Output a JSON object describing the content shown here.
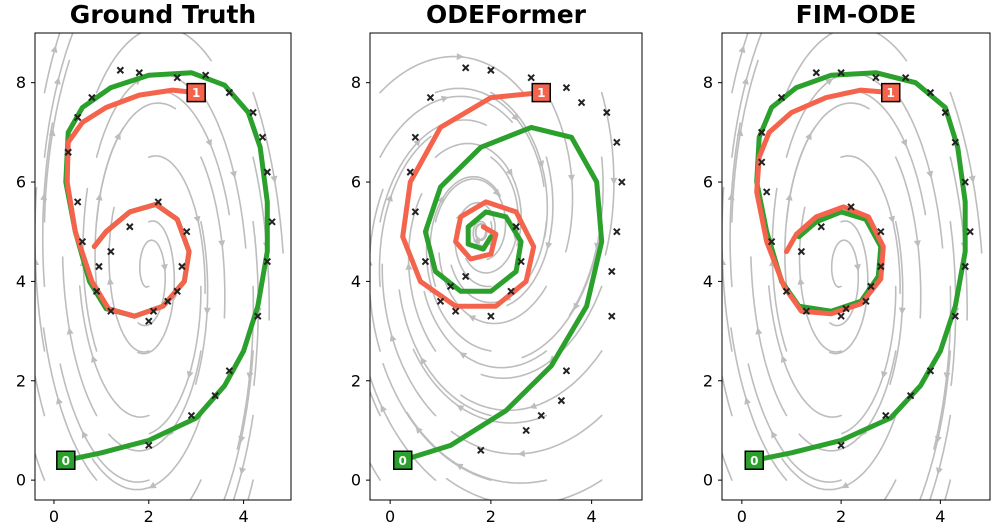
{
  "chart_data": [
    {
      "type": "phase_portrait",
      "title": "Ground Truth",
      "xlim": [
        -0.4,
        5.0
      ],
      "ylim": [
        -0.4,
        9.0
      ],
      "xticks": [
        0,
        2,
        4
      ],
      "yticks": [
        0,
        2,
        4,
        6,
        8
      ],
      "vector_field": {
        "center": [
          2.0,
          4.2
        ],
        "a": 0.7,
        "b": 1.7,
        "k": 0.12
      },
      "trajectories": [
        {
          "name": "ground-truth-green",
          "color": "#2ca02c",
          "points": [
            [
              0.25,
              0.4
            ],
            [
              1.0,
              0.55
            ],
            [
              2.0,
              0.8
            ],
            [
              3.0,
              1.25
            ],
            [
              3.6,
              1.9
            ],
            [
              4.0,
              2.6
            ],
            [
              4.3,
              3.5
            ],
            [
              4.5,
              4.6
            ],
            [
              4.5,
              5.6
            ],
            [
              4.35,
              6.7
            ],
            [
              4.1,
              7.4
            ],
            [
              3.6,
              7.95
            ],
            [
              2.9,
              8.2
            ],
            [
              2.0,
              8.15
            ],
            [
              1.2,
              7.9
            ],
            [
              0.6,
              7.5
            ],
            [
              0.3,
              7.0
            ],
            [
              0.25,
              6.0
            ],
            [
              0.45,
              5.0
            ],
            [
              0.75,
              4.0
            ],
            [
              1.1,
              3.45
            ],
            [
              1.7,
              3.3
            ],
            [
              2.3,
              3.5
            ],
            [
              2.75,
              4.0
            ],
            [
              2.85,
              4.6
            ],
            [
              2.6,
              5.25
            ],
            [
              2.15,
              5.55
            ],
            [
              1.6,
              5.4
            ],
            [
              1.1,
              5.0
            ],
            [
              0.85,
              4.7
            ]
          ]
        },
        {
          "name": "ground-truth-red",
          "color": "#f4644c",
          "points": [
            [
              3.0,
              7.8
            ],
            [
              2.5,
              7.85
            ],
            [
              1.8,
              7.75
            ],
            [
              1.1,
              7.5
            ],
            [
              0.6,
              7.2
            ],
            [
              0.3,
              6.8
            ],
            [
              0.28,
              6.0
            ],
            [
              0.45,
              5.0
            ],
            [
              0.8,
              4.0
            ],
            [
              1.15,
              3.45
            ],
            [
              1.7,
              3.3
            ],
            [
              2.3,
              3.5
            ],
            [
              2.75,
              4.0
            ],
            [
              2.85,
              4.6
            ],
            [
              2.6,
              5.25
            ],
            [
              2.15,
              5.55
            ],
            [
              1.6,
              5.4
            ],
            [
              1.1,
              5.0
            ],
            [
              0.85,
              4.7
            ]
          ]
        }
      ],
      "scatter": [
        [
          1.4,
          8.25
        ],
        [
          1.8,
          8.2
        ],
        [
          2.6,
          8.1
        ],
        [
          3.2,
          8.15
        ],
        [
          3.7,
          7.8
        ],
        [
          4.2,
          7.4
        ],
        [
          4.4,
          6.9
        ],
        [
          4.5,
          6.2
        ],
        [
          4.6,
          5.2
        ],
        [
          4.5,
          4.4
        ],
        [
          4.3,
          3.3
        ],
        [
          3.7,
          2.2
        ],
        [
          3.4,
          1.7
        ],
        [
          2.9,
          1.3
        ],
        [
          2.0,
          0.7
        ],
        [
          0.8,
          7.7
        ],
        [
          0.5,
          7.3
        ],
        [
          0.3,
          6.6
        ],
        [
          0.5,
          5.6
        ],
        [
          0.6,
          4.8
        ],
        [
          0.9,
          3.8
        ],
        [
          1.2,
          3.4
        ],
        [
          2.0,
          3.2
        ],
        [
          2.4,
          3.6
        ],
        [
          2.7,
          4.3
        ],
        [
          2.8,
          5.0
        ],
        [
          2.2,
          5.6
        ],
        [
          1.6,
          5.1
        ],
        [
          1.2,
          4.6
        ],
        [
          0.95,
          4.3
        ],
        [
          2.1,
          3.4
        ],
        [
          2.6,
          3.8
        ]
      ],
      "markers": [
        {
          "label": "0",
          "x": 0.25,
          "y": 0.4,
          "color": "#2ca02c"
        },
        {
          "label": "1",
          "x": 3.0,
          "y": 7.8,
          "color": "#f4644c"
        }
      ]
    },
    {
      "type": "phase_portrait",
      "title": "ODEFormer",
      "xlim": [
        -0.4,
        5.0
      ],
      "ylim": [
        -0.4,
        9.0
      ],
      "xticks": [
        0,
        2,
        4
      ],
      "yticks": [
        0,
        2,
        4,
        6,
        8
      ],
      "vector_field": {
        "center": [
          1.8,
          5.0
        ],
        "a": 0.9,
        "b": 1.4,
        "k": -0.25
      },
      "trajectories": [
        {
          "name": "odeformer-green",
          "color": "#2ca02c",
          "points": [
            [
              0.25,
              0.4
            ],
            [
              1.2,
              0.7
            ],
            [
              2.3,
              1.4
            ],
            [
              3.2,
              2.3
            ],
            [
              3.9,
              3.5
            ],
            [
              4.2,
              4.8
            ],
            [
              4.1,
              6.0
            ],
            [
              3.6,
              6.9
            ],
            [
              2.8,
              7.1
            ],
            [
              1.8,
              6.7
            ],
            [
              1.0,
              5.9
            ],
            [
              0.7,
              5.0
            ],
            [
              0.9,
              4.2
            ],
            [
              1.4,
              3.8
            ],
            [
              2.0,
              3.8
            ],
            [
              2.5,
              4.2
            ],
            [
              2.6,
              4.8
            ],
            [
              2.3,
              5.3
            ],
            [
              1.9,
              5.4
            ],
            [
              1.55,
              5.1
            ],
            [
              1.55,
              4.75
            ],
            [
              1.85,
              4.65
            ],
            [
              2.0,
              4.9
            ]
          ]
        },
        {
          "name": "odeformer-red",
          "color": "#f4644c",
          "points": [
            [
              3.0,
              7.8
            ],
            [
              2.0,
              7.7
            ],
            [
              1.0,
              7.1
            ],
            [
              0.4,
              6.0
            ],
            [
              0.25,
              4.9
            ],
            [
              0.6,
              4.0
            ],
            [
              1.3,
              3.5
            ],
            [
              2.1,
              3.5
            ],
            [
              2.7,
              4.0
            ],
            [
              2.85,
              4.7
            ],
            [
              2.5,
              5.4
            ],
            [
              1.9,
              5.6
            ],
            [
              1.4,
              5.3
            ],
            [
              1.3,
              4.8
            ],
            [
              1.6,
              4.45
            ],
            [
              2.0,
              4.55
            ],
            [
              2.1,
              4.95
            ],
            [
              1.85,
              5.1
            ]
          ]
        }
      ],
      "scatter": [
        [
          1.5,
          8.3
        ],
        [
          2.0,
          8.25
        ],
        [
          2.8,
          8.1
        ],
        [
          3.5,
          7.9
        ],
        [
          3.8,
          7.6
        ],
        [
          4.3,
          7.4
        ],
        [
          4.5,
          6.8
        ],
        [
          4.6,
          6.0
        ],
        [
          4.5,
          5.0
        ],
        [
          4.4,
          4.2
        ],
        [
          4.4,
          3.3
        ],
        [
          3.5,
          2.2
        ],
        [
          3.4,
          1.6
        ],
        [
          3.0,
          1.3
        ],
        [
          2.7,
          1.0
        ],
        [
          1.8,
          0.6
        ],
        [
          0.8,
          7.7
        ],
        [
          0.5,
          6.9
        ],
        [
          0.4,
          6.2
        ],
        [
          0.5,
          5.4
        ],
        [
          0.7,
          4.4
        ],
        [
          1.0,
          3.6
        ],
        [
          1.3,
          3.4
        ],
        [
          2.0,
          3.3
        ],
        [
          2.4,
          3.8
        ],
        [
          2.6,
          4.4
        ],
        [
          2.5,
          5.1
        ],
        [
          1.5,
          4.1
        ],
        [
          1.2,
          3.9
        ]
      ],
      "markers": [
        {
          "label": "0",
          "x": 0.25,
          "y": 0.4,
          "color": "#2ca02c"
        },
        {
          "label": "1",
          "x": 3.0,
          "y": 7.8,
          "color": "#f4644c"
        }
      ]
    },
    {
      "type": "phase_portrait",
      "title": "FIM-ODE",
      "xlim": [
        -0.4,
        5.0
      ],
      "ylim": [
        -0.4,
        9.0
      ],
      "xticks": [
        0,
        2,
        4
      ],
      "yticks": [
        0,
        2,
        4,
        6,
        8
      ],
      "vector_field": {
        "center": [
          2.0,
          4.2
        ],
        "a": 0.7,
        "b": 1.7,
        "k": 0.12
      },
      "trajectories": [
        {
          "name": "fim-ode-green",
          "color": "#2ca02c",
          "points": [
            [
              0.25,
              0.4
            ],
            [
              1.0,
              0.55
            ],
            [
              2.0,
              0.8
            ],
            [
              3.0,
              1.25
            ],
            [
              3.6,
              1.9
            ],
            [
              4.0,
              2.6
            ],
            [
              4.3,
              3.5
            ],
            [
              4.5,
              4.6
            ],
            [
              4.5,
              5.6
            ],
            [
              4.35,
              6.7
            ],
            [
              4.1,
              7.5
            ],
            [
              3.5,
              8.0
            ],
            [
              2.7,
              8.2
            ],
            [
              1.8,
              8.15
            ],
            [
              1.1,
              7.9
            ],
            [
              0.6,
              7.5
            ],
            [
              0.35,
              6.9
            ],
            [
              0.3,
              6.0
            ],
            [
              0.5,
              5.0
            ],
            [
              0.8,
              4.0
            ],
            [
              1.15,
              3.5
            ],
            [
              1.8,
              3.4
            ],
            [
              2.4,
              3.6
            ],
            [
              2.75,
              4.1
            ],
            [
              2.8,
              4.7
            ],
            [
              2.5,
              5.25
            ],
            [
              2.0,
              5.4
            ],
            [
              1.5,
              5.2
            ],
            [
              1.15,
              4.9
            ]
          ]
        },
        {
          "name": "fim-ode-red",
          "color": "#f4644c",
          "points": [
            [
              3.0,
              7.8
            ],
            [
              2.4,
              7.85
            ],
            [
              1.7,
              7.7
            ],
            [
              1.0,
              7.4
            ],
            [
              0.55,
              7.0
            ],
            [
              0.35,
              6.5
            ],
            [
              0.3,
              5.8
            ],
            [
              0.5,
              4.8
            ],
            [
              0.85,
              3.9
            ],
            [
              1.2,
              3.4
            ],
            [
              1.8,
              3.35
            ],
            [
              2.4,
              3.55
            ],
            [
              2.8,
              4.05
            ],
            [
              2.85,
              4.7
            ],
            [
              2.55,
              5.3
            ],
            [
              2.05,
              5.5
            ],
            [
              1.5,
              5.3
            ],
            [
              1.1,
              4.95
            ],
            [
              0.9,
              4.6
            ]
          ]
        }
      ],
      "scatter": [
        [
          1.5,
          8.2
        ],
        [
          2.0,
          8.2
        ],
        [
          2.7,
          8.1
        ],
        [
          3.3,
          8.1
        ],
        [
          3.8,
          7.8
        ],
        [
          4.1,
          7.4
        ],
        [
          4.3,
          6.8
        ],
        [
          4.5,
          6.0
        ],
        [
          4.6,
          5.0
        ],
        [
          4.5,
          4.3
        ],
        [
          4.3,
          3.3
        ],
        [
          3.8,
          2.2
        ],
        [
          3.4,
          1.7
        ],
        [
          2.9,
          1.3
        ],
        [
          2.0,
          0.7
        ],
        [
          0.8,
          7.7
        ],
        [
          0.4,
          7.0
        ],
        [
          0.4,
          6.4
        ],
        [
          0.5,
          5.8
        ],
        [
          0.6,
          4.8
        ],
        [
          0.9,
          3.8
        ],
        [
          1.3,
          3.4
        ],
        [
          2.0,
          3.3
        ],
        [
          2.5,
          3.6
        ],
        [
          2.8,
          4.3
        ],
        [
          2.8,
          5.0
        ],
        [
          2.2,
          5.5
        ],
        [
          1.6,
          5.1
        ],
        [
          1.2,
          4.6
        ],
        [
          2.1,
          3.45
        ],
        [
          2.6,
          3.9
        ]
      ],
      "markers": [
        {
          "label": "0",
          "x": 0.25,
          "y": 0.4,
          "color": "#2ca02c"
        },
        {
          "label": "1",
          "x": 3.0,
          "y": 7.8,
          "color": "#f4644c"
        }
      ]
    }
  ]
}
